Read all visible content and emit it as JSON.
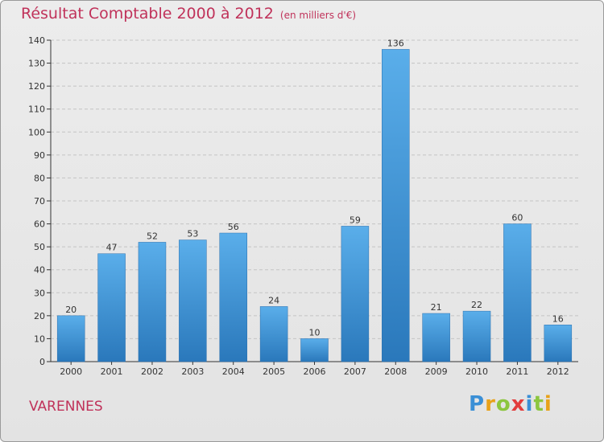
{
  "header": {
    "title": "Résultat Comptable 2000 à 2012",
    "subtitle": "(en milliers d'€)"
  },
  "footer": {
    "place": "VARENNES",
    "brand": "Proxiti"
  },
  "colors": {
    "title": "#c0325a",
    "bar_top": "#5aaeea",
    "bar_bottom": "#2a78bb"
  },
  "chart_data": {
    "type": "bar",
    "categories": [
      "2000",
      "2001",
      "2002",
      "2003",
      "2004",
      "2005",
      "2006",
      "2007",
      "2008",
      "2009",
      "2010",
      "2011",
      "2012"
    ],
    "values": [
      20,
      47,
      52,
      53,
      56,
      24,
      10,
      59,
      136,
      21,
      22,
      60,
      16
    ],
    "title": "Résultat Comptable 2000 à 2012",
    "xlabel": "",
    "ylabel": "",
    "ylim": [
      0,
      140
    ],
    "yticks": [
      0,
      10,
      20,
      30,
      40,
      50,
      60,
      70,
      80,
      90,
      100,
      110,
      120,
      130,
      140
    ],
    "grid": true,
    "legend": "none"
  }
}
